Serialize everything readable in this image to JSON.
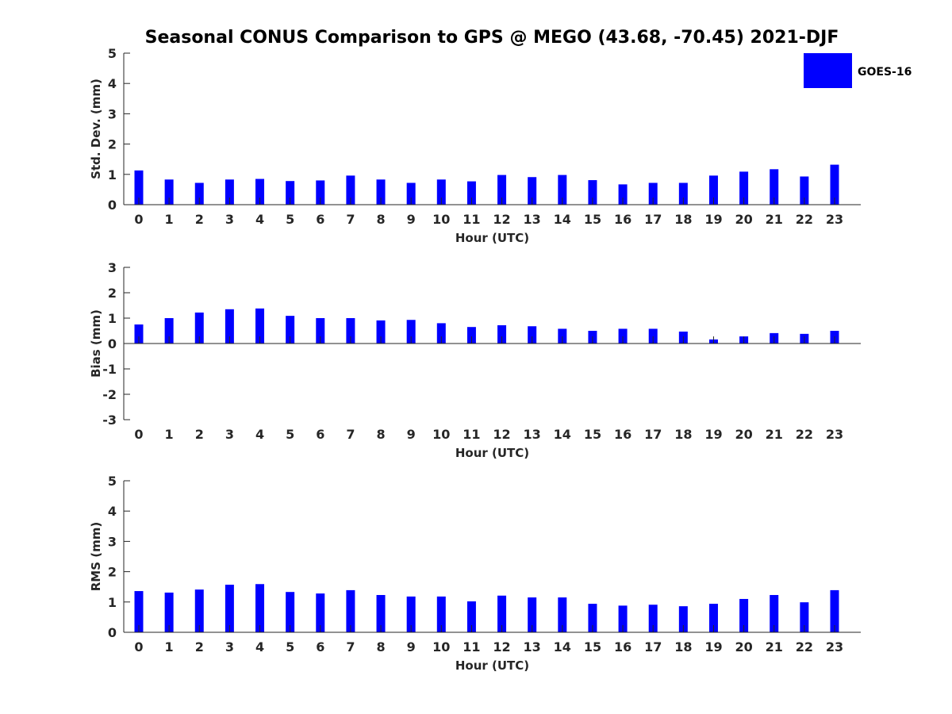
{
  "figure": {
    "title": "Seasonal CONUS Comparison to GPS @ MEGO (43.68, -70.45) 2021-DJF"
  },
  "legend": {
    "label": "GOES-16",
    "color": "#0000ff"
  },
  "chart_data": [
    {
      "type": "bar",
      "xlabel": "Hour (UTC)",
      "ylabel": "Std. Dev. (mm)",
      "ylim": [
        0,
        5
      ],
      "yticks": [
        0,
        1,
        2,
        3,
        4,
        5
      ],
      "categories": [
        "0",
        "1",
        "2",
        "3",
        "4",
        "5",
        "6",
        "7",
        "8",
        "9",
        "10",
        "11",
        "12",
        "13",
        "14",
        "15",
        "16",
        "17",
        "18",
        "19",
        "20",
        "21",
        "22",
        "23"
      ],
      "series": [
        {
          "name": "GOES-16",
          "color": "#0000ff",
          "values": [
            1.13,
            0.83,
            0.72,
            0.83,
            0.85,
            0.78,
            0.8,
            0.96,
            0.83,
            0.72,
            0.83,
            0.77,
            0.98,
            0.91,
            0.98,
            0.81,
            0.67,
            0.72,
            0.72,
            0.96,
            1.09,
            1.17,
            0.93,
            1.32
          ]
        }
      ],
      "legend_position": "top-right",
      "grid": false
    },
    {
      "type": "bar",
      "xlabel": "Hour (UTC)",
      "ylabel": "Bias (mm)",
      "ylim": [
        -3,
        3
      ],
      "yticks": [
        -3,
        -2,
        -1,
        0,
        1,
        2,
        3
      ],
      "categories": [
        "0",
        "1",
        "2",
        "3",
        "4",
        "5",
        "6",
        "7",
        "8",
        "9",
        "10",
        "11",
        "12",
        "13",
        "14",
        "15",
        "16",
        "17",
        "18",
        "19",
        "20",
        "21",
        "22",
        "23"
      ],
      "series": [
        {
          "name": "GOES-16",
          "color": "#0000ff",
          "values": [
            0.75,
            1.0,
            1.22,
            1.35,
            1.38,
            1.09,
            1.0,
            1.0,
            0.91,
            0.93,
            0.8,
            0.65,
            0.72,
            0.68,
            0.58,
            0.5,
            0.58,
            0.58,
            0.47,
            0.16,
            0.28,
            0.41,
            0.38,
            0.5
          ]
        }
      ],
      "grid": false
    },
    {
      "type": "bar",
      "xlabel": "Hour (UTC)",
      "ylabel": "RMS (mm)",
      "ylim": [
        0,
        5
      ],
      "yticks": [
        0,
        1,
        2,
        3,
        4,
        5
      ],
      "categories": [
        "0",
        "1",
        "2",
        "3",
        "4",
        "5",
        "6",
        "7",
        "8",
        "9",
        "10",
        "11",
        "12",
        "13",
        "14",
        "15",
        "16",
        "17",
        "18",
        "19",
        "20",
        "21",
        "22",
        "23"
      ],
      "series": [
        {
          "name": "GOES-16",
          "color": "#0000ff",
          "values": [
            1.36,
            1.31,
            1.41,
            1.57,
            1.59,
            1.33,
            1.28,
            1.39,
            1.23,
            1.18,
            1.18,
            1.02,
            1.21,
            1.15,
            1.15,
            0.94,
            0.88,
            0.91,
            0.86,
            0.94,
            1.1,
            1.23,
            0.99,
            1.39
          ]
        }
      ],
      "grid": false
    }
  ]
}
